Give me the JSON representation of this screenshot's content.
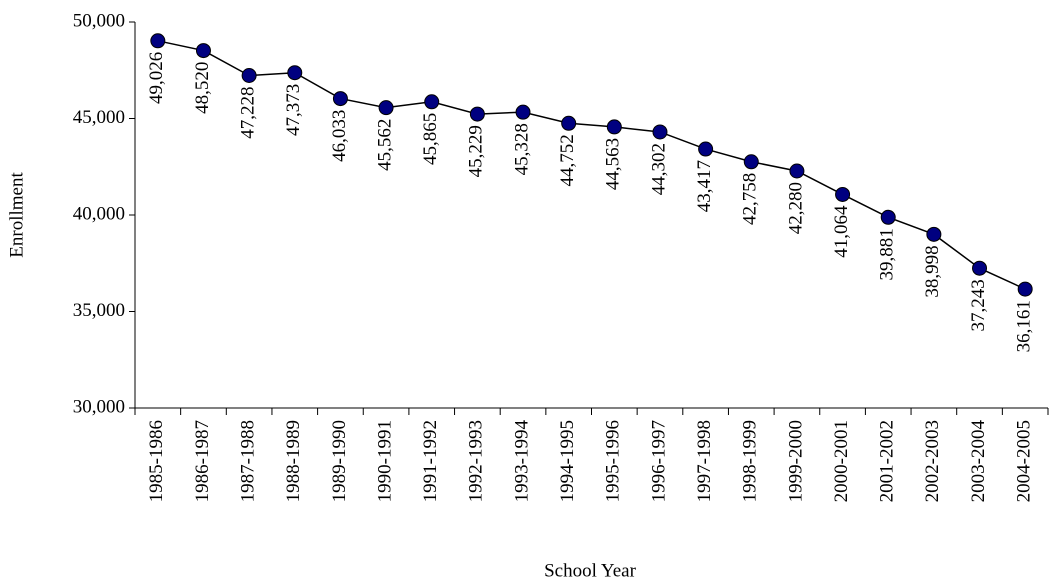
{
  "chart_data": {
    "type": "line",
    "x_label": "School Year",
    "y_label": "Enrollment",
    "categories": [
      "1985-1986",
      "1986-1987",
      "1987-1988",
      "1988-1989",
      "1989-1990",
      "1990-1991",
      "1991-1992",
      "1992-1993",
      "1993-1994",
      "1994-1995",
      "1995-1996",
      "1996-1997",
      "1997-1998",
      "1998-1999",
      "1999-2000",
      "2000-2001",
      "2001-2002",
      "2002-2003",
      "2003-2004",
      "2004-2005"
    ],
    "values": [
      49026,
      48520,
      47228,
      47373,
      46033,
      45562,
      45865,
      45229,
      45328,
      44752,
      44563,
      44302,
      43417,
      42758,
      42280,
      41064,
      39881,
      38998,
      37243,
      36161
    ],
    "value_labels": [
      "49,026",
      "48,520",
      "47,228",
      "47,373",
      "46,033",
      "45,562",
      "45,865",
      "45,229",
      "45,328",
      "44,752",
      "44,563",
      "44,302",
      "43,417",
      "42,758",
      "42,280",
      "41,064",
      "39,881",
      "38,998",
      "37,243",
      "36,161"
    ],
    "color": "#000080",
    "ylim": [
      30000,
      50000
    ],
    "yticks": [
      {
        "value": 30000,
        "label": "30,000"
      },
      {
        "value": 35000,
        "label": "35,000"
      },
      {
        "value": 40000,
        "label": "40,000"
      },
      {
        "value": 45000,
        "label": "45,000"
      },
      {
        "value": 50000,
        "label": "50,000"
      }
    ]
  }
}
